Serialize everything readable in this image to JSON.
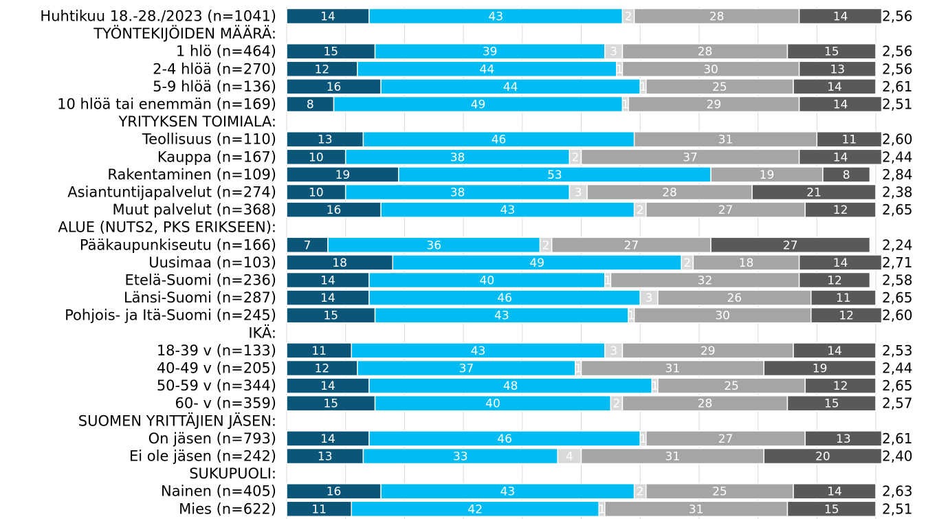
{
  "chart_data": {
    "type": "bar",
    "stacked": true,
    "orientation": "horizontal",
    "xlim": [
      0,
      100
    ],
    "grid": true,
    "colors": [
      "#0a5578",
      "#00bcf2",
      "#d9d9d9",
      "#a5a5a5",
      "#595959"
    ],
    "rows": [
      {
        "label": "Huhtikuu 18.-28./2023 (n=1041)",
        "values": [
          14,
          43,
          2,
          28,
          14
        ],
        "avg": "2,56"
      },
      {
        "label": "TYÖNTEKIJÖIDEN MÄÄRÄ:",
        "header": true
      },
      {
        "label": "1 hlö (n=464)",
        "values": [
          15,
          39,
          3,
          28,
          15
        ],
        "avg": "2,56"
      },
      {
        "label": "2-4 hlöä (n=270)",
        "values": [
          12,
          44,
          1,
          30,
          13
        ],
        "avg": "2,56"
      },
      {
        "label": "5-9 hlöä (n=136)",
        "values": [
          16,
          44,
          1,
          25,
          14
        ],
        "avg": "2,61"
      },
      {
        "label": "10 hlöä tai enemmän (n=169)",
        "values": [
          8,
          49,
          1,
          29,
          14
        ],
        "avg": "2,51"
      },
      {
        "label": "YRITYKSEN TOIMIALA:",
        "header": true
      },
      {
        "label": "Teollisuus (n=110)",
        "values": [
          13,
          46,
          0,
          31,
          11
        ],
        "avg": "2,60"
      },
      {
        "label": "Kauppa (n=167)",
        "values": [
          10,
          38,
          2,
          37,
          14
        ],
        "avg": "2,44"
      },
      {
        "label": "Rakentaminen (n=109)",
        "values": [
          19,
          53,
          0,
          19,
          8
        ],
        "avg": "2,84"
      },
      {
        "label": "Asiantuntijapalvelut (n=274)",
        "values": [
          10,
          38,
          3,
          28,
          21
        ],
        "avg": "2,38"
      },
      {
        "label": "Muut palvelut (n=368)",
        "values": [
          16,
          43,
          2,
          27,
          12
        ],
        "avg": "2,65"
      },
      {
        "label": "ALUE (NUTS2, PKS ERIKSEEN):",
        "header": true
      },
      {
        "label": "Pääkaupunkiseutu (n=166)",
        "values": [
          7,
          36,
          2,
          27,
          27
        ],
        "avg": "2,24"
      },
      {
        "label": "Uusimaa (n=103)",
        "values": [
          18,
          49,
          2,
          18,
          14
        ],
        "avg": "2,71"
      },
      {
        "label": "Etelä-Suomi (n=236)",
        "values": [
          14,
          40,
          1,
          32,
          12
        ],
        "avg": "2,58"
      },
      {
        "label": "Länsi-Suomi (n=287)",
        "values": [
          14,
          46,
          3,
          26,
          11
        ],
        "avg": "2,65"
      },
      {
        "label": "Pohjois- ja Itä-Suomi (n=245)",
        "values": [
          15,
          43,
          1,
          30,
          12
        ],
        "avg": "2,60"
      },
      {
        "label": "IKÄ:",
        "header": true
      },
      {
        "label": "18-39 v (n=133)",
        "values": [
          11,
          43,
          3,
          29,
          14
        ],
        "avg": "2,53"
      },
      {
        "label": "40-49 v (n=205)",
        "values": [
          12,
          37,
          1,
          31,
          19
        ],
        "avg": "2,44"
      },
      {
        "label": "50-59 v (n=344)",
        "values": [
          14,
          48,
          1,
          25,
          12
        ],
        "avg": "2,65"
      },
      {
        "label": "60- v (n=359)",
        "values": [
          15,
          40,
          2,
          28,
          15
        ],
        "avg": "2,57"
      },
      {
        "label": "SUOMEN YRITTÄJIEN JÄSEN:",
        "header": true
      },
      {
        "label": "On jäsen (n=793)",
        "values": [
          14,
          46,
          1,
          27,
          13
        ],
        "avg": "2,61"
      },
      {
        "label": "Ei ole jäsen (n=242)",
        "values": [
          13,
          33,
          4,
          31,
          20
        ],
        "avg": "2,40"
      },
      {
        "label": "SUKUPUOLI:",
        "header": true
      },
      {
        "label": "Nainen (n=405)",
        "values": [
          16,
          43,
          2,
          25,
          14
        ],
        "avg": "2,63"
      },
      {
        "label": "Mies (n=622)",
        "values": [
          11,
          42,
          1,
          31,
          15
        ],
        "avg": "2,51"
      }
    ]
  }
}
